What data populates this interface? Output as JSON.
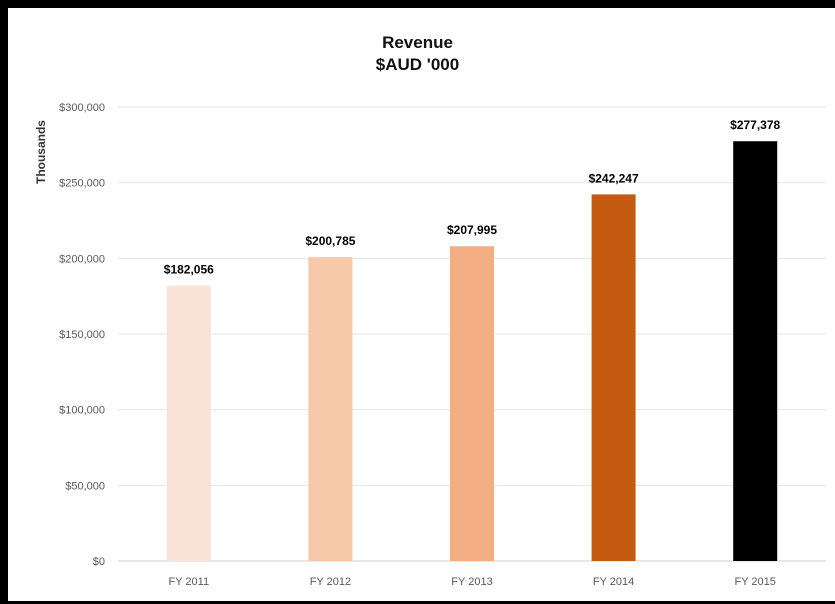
{
  "chart_data": {
    "type": "bar",
    "title": "Revenue",
    "subtitle": "$AUD '000",
    "xlabel": "",
    "ylabel": "Thousands",
    "categories": [
      "FY 2011",
      "FY 2012",
      "FY 2013",
      "FY 2014",
      "FY 2015"
    ],
    "values": [
      182056,
      200785,
      207995,
      242247,
      277378
    ],
    "data_labels": [
      "$182,056",
      "$200,785",
      "$207,995",
      "$242,247",
      "$277,378"
    ],
    "bar_colors": [
      "#f9e3d6",
      "#f6c9a9",
      "#f3ad83",
      "#c55a11",
      "#000000"
    ],
    "ylim": [
      0,
      300000
    ],
    "y_ticks": [
      0,
      50000,
      100000,
      150000,
      200000,
      250000,
      300000
    ],
    "y_tick_labels": [
      "$0",
      "$50,000",
      "$100,000",
      "$150,000",
      "$200,000",
      "$250,000",
      "$300,000"
    ],
    "grid": true,
    "legend": "none"
  }
}
